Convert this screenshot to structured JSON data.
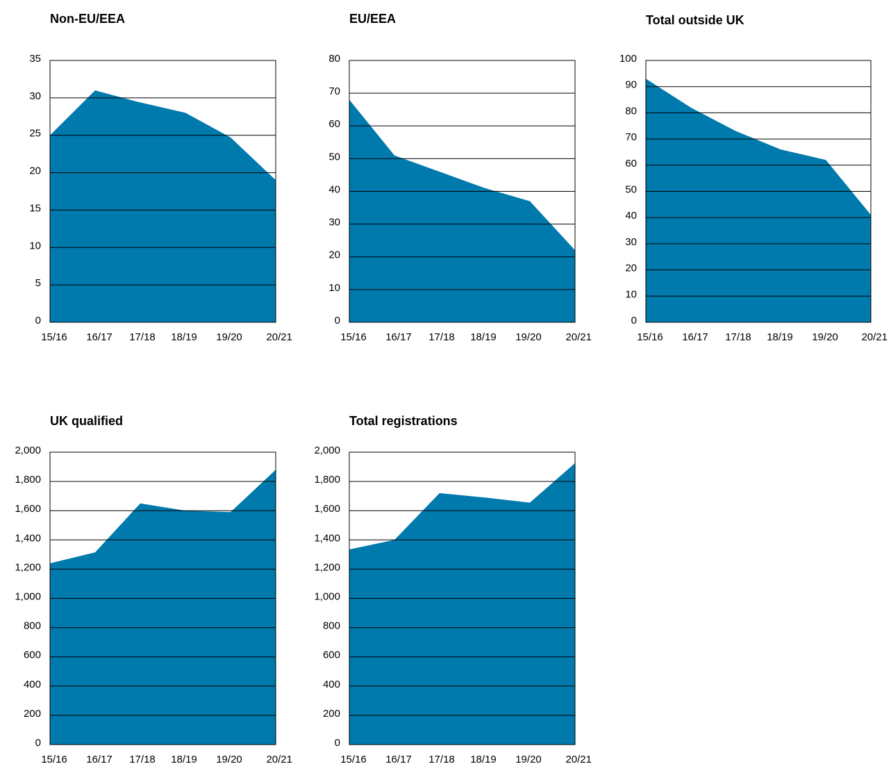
{
  "colors": {
    "area": "#0079ad",
    "grid": "#000000",
    "background": "#ffffff"
  },
  "chart_data": [
    {
      "type": "area",
      "title": "Non-EU/EEA",
      "categories": [
        "15/16",
        "16/17",
        "17/18",
        "18/19",
        "19/20",
        "20/21"
      ],
      "x": [
        0,
        1.25,
        2.5,
        3.75,
        5.0,
        6.25
      ],
      "xlim": [
        0,
        6.25
      ],
      "series": [
        {
          "x": [
            0,
            1.25,
            2.4,
            3.75,
            5.0,
            6.25
          ],
          "values": [
            25,
            31,
            29.5,
            28,
            24.7,
            19
          ]
        }
      ],
      "ylim": [
        0,
        35
      ],
      "yticks": [
        0,
        5,
        10,
        15,
        20,
        25,
        30,
        35
      ],
      "ytick_labels": [
        "0",
        "5",
        "10",
        "15",
        "20",
        "25",
        "30",
        "35"
      ],
      "grid": true
    },
    {
      "type": "area",
      "title": "EU/EEA",
      "categories": [
        "15/16",
        "16/17",
        "17/18",
        "18/19",
        "19/20",
        "20/21"
      ],
      "xlim": [
        0,
        6.25
      ],
      "series": [
        {
          "x": [
            0,
            1.25,
            2.5,
            3.75,
            5.0,
            6.25
          ],
          "values": [
            68,
            51,
            46,
            41,
            37,
            22
          ]
        }
      ],
      "ylim": [
        0,
        80
      ],
      "yticks": [
        0,
        10,
        20,
        30,
        40,
        50,
        60,
        70,
        80
      ],
      "ytick_labels": [
        "0",
        "10",
        "20",
        "30",
        "40",
        "50",
        "60",
        "70",
        "80"
      ],
      "grid": true
    },
    {
      "type": "area",
      "title": "Total outside UK",
      "categories": [
        "15/16",
        "16/17",
        "17/18",
        "18/19",
        "19/20",
        "20/21"
      ],
      "xlim": [
        0,
        6.25
      ],
      "series": [
        {
          "x": [
            0,
            1.25,
            2.5,
            3.75,
            5.0,
            6.25
          ],
          "values": [
            93,
            82,
            73,
            66,
            62,
            41
          ]
        }
      ],
      "ylim": [
        0,
        100
      ],
      "yticks": [
        0,
        10,
        20,
        30,
        40,
        50,
        60,
        70,
        80,
        90,
        100
      ],
      "ytick_labels": [
        "0",
        "10",
        "20",
        "30",
        "40",
        "50",
        "60",
        "70",
        "80",
        "90",
        "100"
      ],
      "grid": true
    },
    {
      "type": "area",
      "title": "UK qualified",
      "categories": [
        "15/16",
        "16/17",
        "17/18",
        "18/19",
        "19/20",
        "20/21"
      ],
      "xlim": [
        0,
        6.25
      ],
      "series": [
        {
          "x": [
            0,
            1.25,
            2.5,
            3.75,
            5.0,
            6.25
          ],
          "values": [
            1240,
            1315,
            1650,
            1600,
            1590,
            1880
          ]
        }
      ],
      "ylim": [
        0,
        2000
      ],
      "yticks": [
        0,
        200,
        400,
        600,
        800,
        1000,
        1200,
        1400,
        1600,
        1800,
        2000
      ],
      "ytick_labels": [
        "0",
        "200",
        "400",
        "600",
        "800",
        "1,000",
        "1,200",
        "1,400",
        "1,600",
        "1,800",
        "2,000"
      ],
      "grid": true
    },
    {
      "type": "area",
      "title": "Total registrations",
      "categories": [
        "15/16",
        "16/17",
        "17/18",
        "18/19",
        "19/20",
        "20/21"
      ],
      "xlim": [
        0,
        6.25
      ],
      "series": [
        {
          "x": [
            0,
            1.25,
            2.5,
            3.75,
            5.0,
            6.25
          ],
          "values": [
            1335,
            1400,
            1720,
            1690,
            1655,
            1925
          ]
        }
      ],
      "ylim": [
        0,
        2000
      ],
      "yticks": [
        0,
        200,
        400,
        600,
        800,
        1000,
        1200,
        1400,
        1600,
        1800,
        2000
      ],
      "ytick_labels": [
        "0",
        "200",
        "400",
        "600",
        "800",
        "1,000",
        "1,200",
        "1,400",
        "1,600",
        "1,800",
        "2,000"
      ],
      "grid": true
    }
  ]
}
